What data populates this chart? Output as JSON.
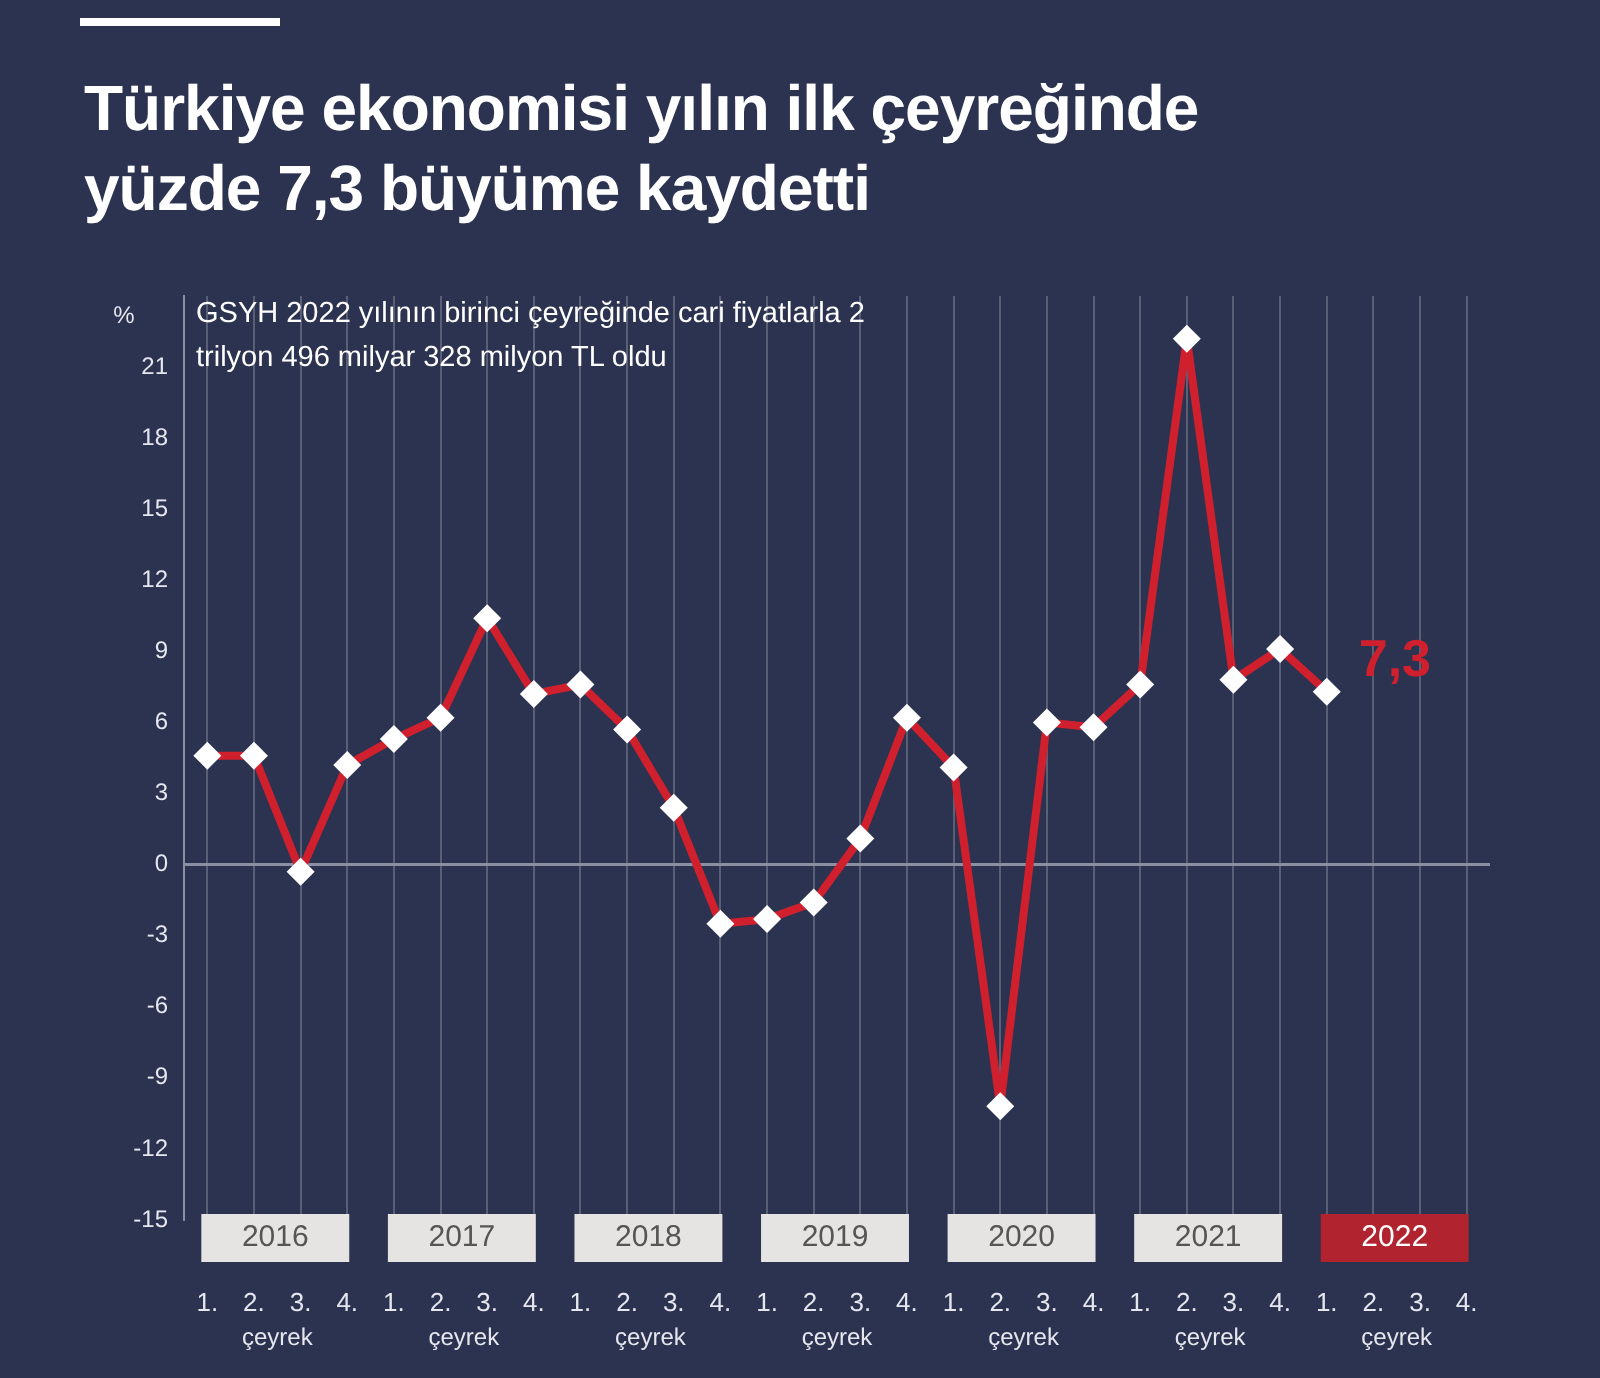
{
  "chart_data": {
    "type": "line",
    "title": "Türkiye ekonomisi yılın ilk çeyreğinde yüzde 7,3 büyüme kaydetti",
    "subtitle": "GSYH 2022 yılının birinci çeyreğinde cari fiyatlarla 2 trilyon 496 milyar 328 milyon TL oldu",
    "ylabel": "%",
    "xlabel": "çeyrek",
    "categories": [
      "1.",
      "2.",
      "3.",
      "4.",
      "1.",
      "2.",
      "3.",
      "4.",
      "1.",
      "2.",
      "3.",
      "4.",
      "1.",
      "2.",
      "3.",
      "4.",
      "1.",
      "2.",
      "3.",
      "4.",
      "1.",
      "2.",
      "3.",
      "4.",
      "1.",
      "2.",
      "3.",
      "4."
    ],
    "series": [
      {
        "color": "#d0202e",
        "values": [
          4.6,
          4.6,
          -0.3,
          4.2,
          5.3,
          6.2,
          10.4,
          7.2,
          7.6,
          5.7,
          2.4,
          -2.5,
          -2.3,
          -1.6,
          1.1,
          6.2,
          4.1,
          -10.2,
          6.0,
          5.8,
          7.6,
          22.2,
          7.8,
          9.1,
          7.3,
          null,
          null,
          null
        ],
        "value_labels": [
          null,
          null,
          null,
          null,
          null,
          null,
          null,
          null,
          null,
          null,
          null,
          null,
          null,
          null,
          null,
          null,
          null,
          null,
          null,
          null,
          null,
          null,
          null,
          null,
          "7,3",
          null,
          null,
          null
        ]
      }
    ],
    "annotations": [
      "2016",
      "2017",
      "2018",
      "2019",
      "2020",
      "2021",
      "2022"
    ],
    "ylim": [
      -15,
      24
    ],
    "yticks": [
      -15,
      -12,
      -9,
      -6,
      -3,
      0,
      3,
      6,
      9,
      12,
      15,
      18,
      21
    ],
    "ref_lines": [
      {
        "axis": "y",
        "value": 0,
        "color": "#8a8fa3"
      }
    ],
    "grid": "x",
    "legend": false,
    "marker": "diamond",
    "line_style": "solid"
  }
}
